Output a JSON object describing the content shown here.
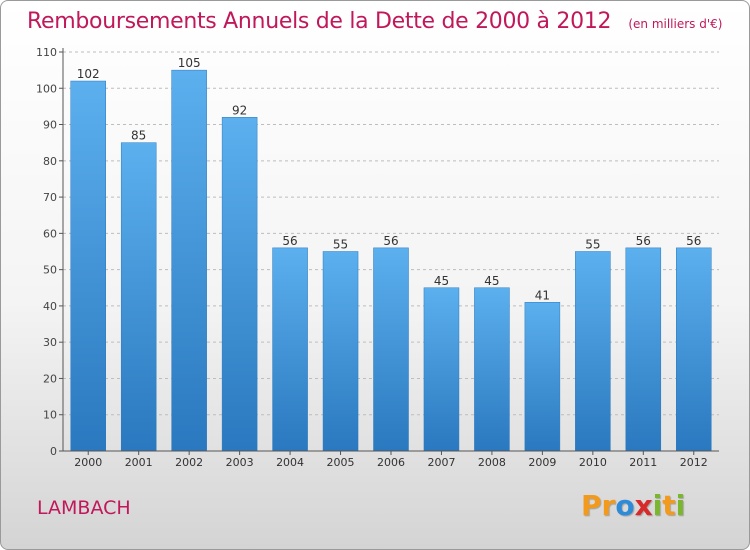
{
  "chart_data": {
    "type": "bar",
    "title": "Remboursements Annuels de la Dette de 2000 à 2012",
    "subtitle": "(en milliers d'€)",
    "categories": [
      "2000",
      "2001",
      "2002",
      "2003",
      "2004",
      "2005",
      "2006",
      "2007",
      "2008",
      "2009",
      "2010",
      "2011",
      "2012"
    ],
    "values": [
      102,
      85,
      105,
      92,
      56,
      55,
      56,
      45,
      45,
      41,
      55,
      56,
      56
    ],
    "ylim": [
      0,
      110
    ],
    "yticks": [
      0,
      10,
      20,
      30,
      40,
      50,
      60,
      70,
      80,
      90,
      100,
      110
    ],
    "grid": true,
    "bar_color": "#4a9fe0"
  },
  "footer": {
    "city": "LAMBACH",
    "logo": {
      "letters": [
        "P",
        "r",
        "o",
        "x",
        "i",
        "t",
        "i"
      ],
      "colors": [
        "#f39a1c",
        "#f39a1c",
        "#2e8bd8",
        "#d72a2a",
        "#7ab62e",
        "#f39a1c",
        "#7ab62e"
      ]
    }
  }
}
